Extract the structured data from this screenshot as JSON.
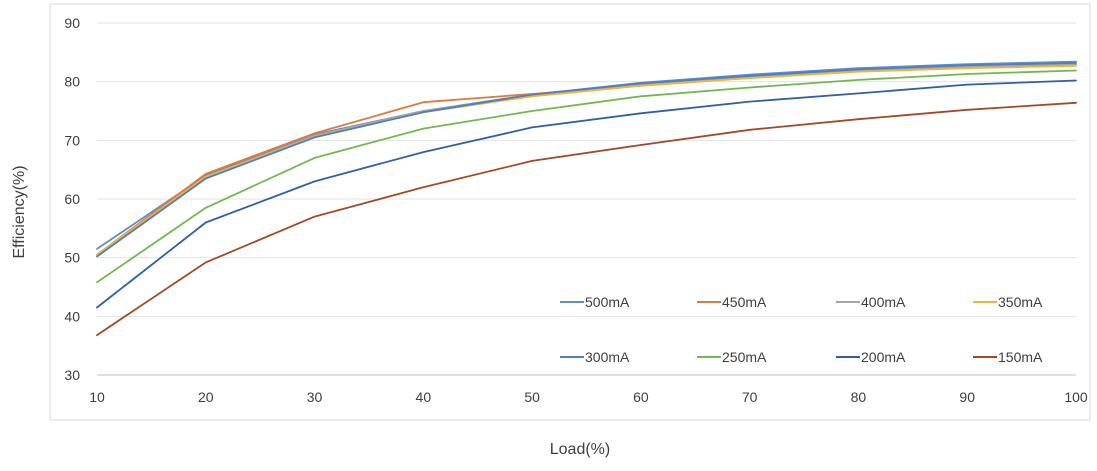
{
  "chart_data": {
    "type": "line",
    "title": "",
    "xlabel": "Load(%)",
    "ylabel": "Efficiency(%)",
    "xlim": [
      10,
      100
    ],
    "ylim": [
      30,
      90
    ],
    "x": [
      10,
      20,
      30,
      40,
      50,
      60,
      70,
      80,
      90,
      100
    ],
    "x_ticks": [
      "10",
      "20",
      "30",
      "40",
      "50",
      "60",
      "70",
      "80",
      "90",
      "100"
    ],
    "y_ticks": [
      "30",
      "40",
      "50",
      "60",
      "70",
      "80",
      "90"
    ],
    "grid": "horizontal",
    "legend_position": "bottom-right",
    "series": [
      {
        "name": "500mA",
        "color": "#5B8FD0",
        "values": [
          51.5,
          64.0,
          71.0,
          75.0,
          77.8,
          79.8,
          81.2,
          82.3,
          83.0,
          83.4
        ]
      },
      {
        "name": "450mA",
        "color": "#E2783A",
        "values": [
          50.5,
          64.3,
          71.2,
          76.5,
          77.9,
          79.5,
          80.7,
          81.8,
          82.5,
          83.0
        ]
      },
      {
        "name": "400mA",
        "color": "#A5A5A5",
        "values": [
          50.5,
          63.8,
          70.8,
          75.0,
          77.6,
          79.4,
          80.8,
          81.9,
          82.6,
          83.0
        ]
      },
      {
        "name": "350mA",
        "color": "#F2B630",
        "values": [
          50.5,
          63.8,
          70.6,
          74.8,
          77.5,
          79.3,
          80.6,
          81.7,
          82.3,
          82.7
        ]
      },
      {
        "name": "300mA",
        "color": "#4F7EC7",
        "values": [
          50.2,
          63.5,
          70.5,
          74.8,
          77.8,
          79.7,
          81.0,
          82.1,
          82.8,
          83.2
        ]
      },
      {
        "name": "250mA",
        "color": "#72B84F",
        "values": [
          45.8,
          58.5,
          67.0,
          72.0,
          75.0,
          77.5,
          79.0,
          80.3,
          81.3,
          81.9
        ]
      },
      {
        "name": "200mA",
        "color": "#2F5FA7",
        "values": [
          41.5,
          56.0,
          63.0,
          68.0,
          72.2,
          74.6,
          76.6,
          78.0,
          79.5,
          80.2
        ]
      },
      {
        "name": "150mA",
        "color": "#A24A27",
        "values": [
          36.8,
          49.2,
          57.0,
          62.0,
          66.5,
          69.2,
          71.8,
          73.6,
          75.2,
          76.4
        ]
      }
    ]
  }
}
